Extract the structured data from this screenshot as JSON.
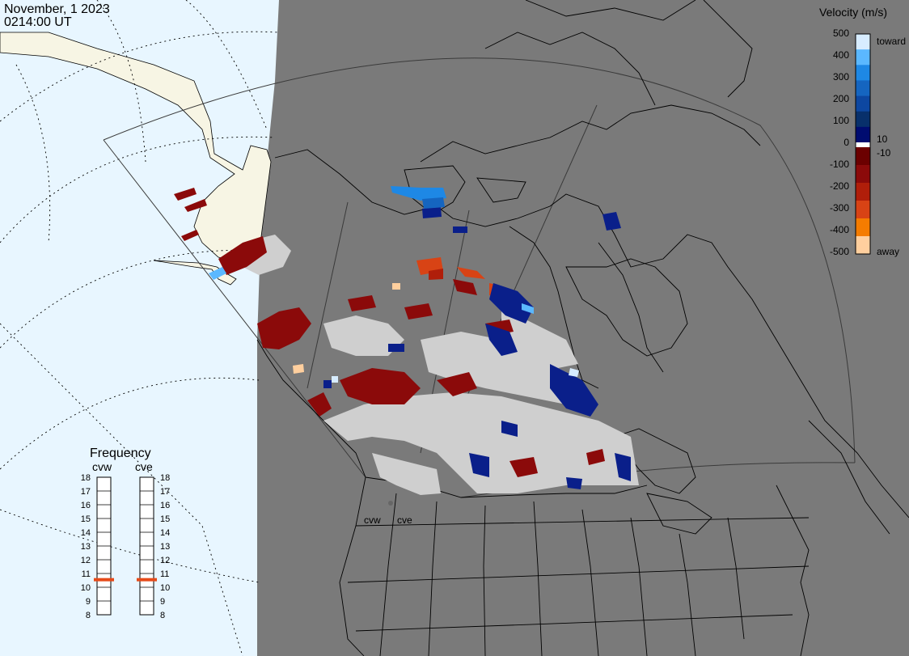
{
  "header": {
    "date": "November, 1 2023",
    "time": "0214:00 UT"
  },
  "legend": {
    "title": "Velocity (m/s)",
    "labels": [
      "500",
      "400",
      "300",
      "200",
      "100",
      "10",
      "0",
      "-10",
      "-100",
      "-200",
      "-300",
      "-400",
      "-500"
    ],
    "toward_label": "toward",
    "away_label": "away",
    "colors": [
      "#d7ecff",
      "#5bb8ff",
      "#1e88e5",
      "#1565c0",
      "#0d47a1",
      "#08306b",
      "#000c70",
      "#ffffff",
      "#6b0000",
      "#8b0a0a",
      "#b01e0a",
      "#d84315",
      "#f57c00",
      "#ffcf9e"
    ]
  },
  "frequency_panel": {
    "title": "Frequency",
    "radars": [
      {
        "code": "cvw",
        "frequency_mhz": 11
      },
      {
        "code": "cve",
        "frequency_mhz": 11
      }
    ],
    "scale": [
      "18",
      "17",
      "16",
      "15",
      "14",
      "13",
      "12",
      "11",
      "10",
      "9",
      "8"
    ],
    "marker_color": "#e64a19"
  },
  "map": {
    "radar_site_labels": [
      "cvw",
      "cve"
    ],
    "background_land_color": "#7a7a7a",
    "day_side_ocean_color": "#e8f6ff",
    "day_side_land_color": "#f7f5e4",
    "ground_scatter_color": "#cfcfcf"
  }
}
